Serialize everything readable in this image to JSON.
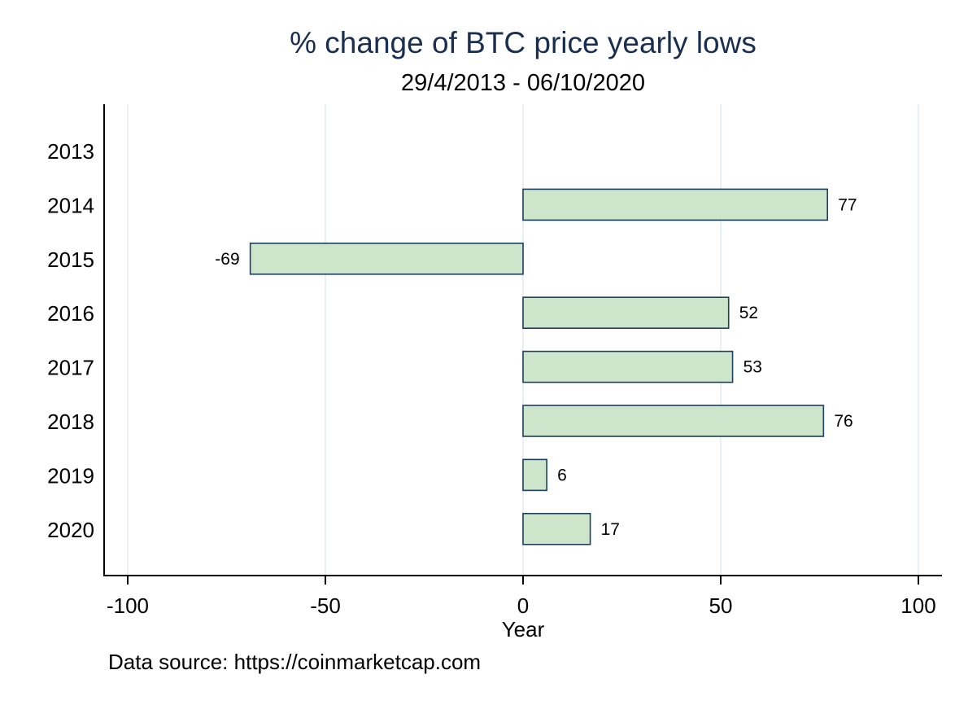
{
  "chart_data": {
    "type": "bar",
    "orientation": "horizontal",
    "title": "% change of BTC price yearly lows",
    "subtitle": "29/4/2013 - 06/10/2020",
    "xlabel": "Year",
    "ylabel": "",
    "note": "Data source: https://coinmarketcap.com",
    "categories": [
      "2013",
      "2014",
      "2015",
      "2016",
      "2017",
      "2018",
      "2019",
      "2020"
    ],
    "values": [
      null,
      77,
      -69,
      52,
      53,
      76,
      6,
      17
    ],
    "data_labels": [
      "",
      "77",
      "-69",
      "52",
      "53",
      "76",
      "6",
      "17"
    ],
    "xlim": [
      -100,
      100
    ],
    "xticks": [
      -100,
      -50,
      0,
      50,
      100
    ],
    "xtick_labels": [
      "-100",
      "-50",
      "0",
      "50",
      "100"
    ],
    "grid": true,
    "legend": "none",
    "colors": {
      "bar_fill": "#cde5cb",
      "bar_stroke": "#1f3f5f",
      "grid": "#e8f0f3",
      "axis": "#000000",
      "title": "#1a2e4f"
    }
  }
}
